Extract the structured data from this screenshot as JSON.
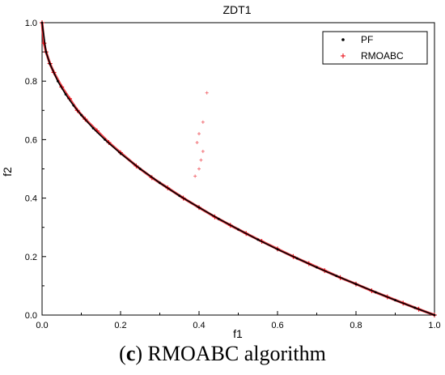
{
  "chart_data": {
    "type": "scatter",
    "title": "ZDT1",
    "xlabel": "f1",
    "ylabel": "f2",
    "xlim": [
      0.0,
      1.0
    ],
    "ylim": [
      0.0,
      1.0
    ],
    "xticks": [
      "0.0",
      "0.2",
      "0.4",
      "0.6",
      "0.8",
      "1.0"
    ],
    "yticks": [
      "0.0",
      "0.2",
      "0.4",
      "0.6",
      "0.8",
      "1.0"
    ],
    "grid": false,
    "legend_position": "top-right",
    "series": [
      {
        "name": "PF",
        "color": "#000000",
        "marker": "dot",
        "x": [
          0.0,
          0.01,
          0.02,
          0.04,
          0.06,
          0.08,
          0.1,
          0.13,
          0.16,
          0.2,
          0.25,
          0.3,
          0.35,
          0.4,
          0.45,
          0.5,
          0.55,
          0.6,
          0.65,
          0.7,
          0.75,
          0.8,
          0.85,
          0.9,
          0.95,
          1.0
        ],
        "y": [
          1.0,
          0.9,
          0.859,
          0.8,
          0.755,
          0.717,
          0.684,
          0.639,
          0.6,
          0.553,
          0.5,
          0.452,
          0.408,
          0.368,
          0.329,
          0.293,
          0.258,
          0.225,
          0.194,
          0.163,
          0.134,
          0.106,
          0.078,
          0.051,
          0.025,
          0.0
        ]
      },
      {
        "name": "RMOABC",
        "color": "#e8000b",
        "marker": "plus",
        "x": [
          0.0,
          0.005,
          0.01,
          0.02,
          0.03,
          0.05,
          0.07,
          0.09,
          0.11,
          0.14,
          0.17,
          0.2,
          0.24,
          0.28,
          0.32,
          0.36,
          0.4,
          0.44,
          0.48,
          0.52,
          0.56,
          0.6,
          0.64,
          0.68,
          0.72,
          0.76,
          0.8,
          0.84,
          0.88,
          0.92,
          0.96,
          1.0
        ],
        "y": [
          1.0,
          0.93,
          0.9,
          0.86,
          0.83,
          0.78,
          0.74,
          0.7,
          0.67,
          0.63,
          0.59,
          0.555,
          0.51,
          0.47,
          0.435,
          0.4,
          0.368,
          0.336,
          0.307,
          0.279,
          0.252,
          0.226,
          0.2,
          0.176,
          0.152,
          0.128,
          0.106,
          0.083,
          0.062,
          0.041,
          0.02,
          0.0
        ]
      }
    ],
    "stray_points": {
      "x": [
        0.39,
        0.4,
        0.405,
        0.41,
        0.395,
        0.4,
        0.41,
        0.42
      ],
      "y": [
        0.475,
        0.5,
        0.53,
        0.56,
        0.59,
        0.62,
        0.66,
        0.76
      ]
    }
  },
  "caption": {
    "label": "c",
    "text": "RMOABC algorithm"
  }
}
